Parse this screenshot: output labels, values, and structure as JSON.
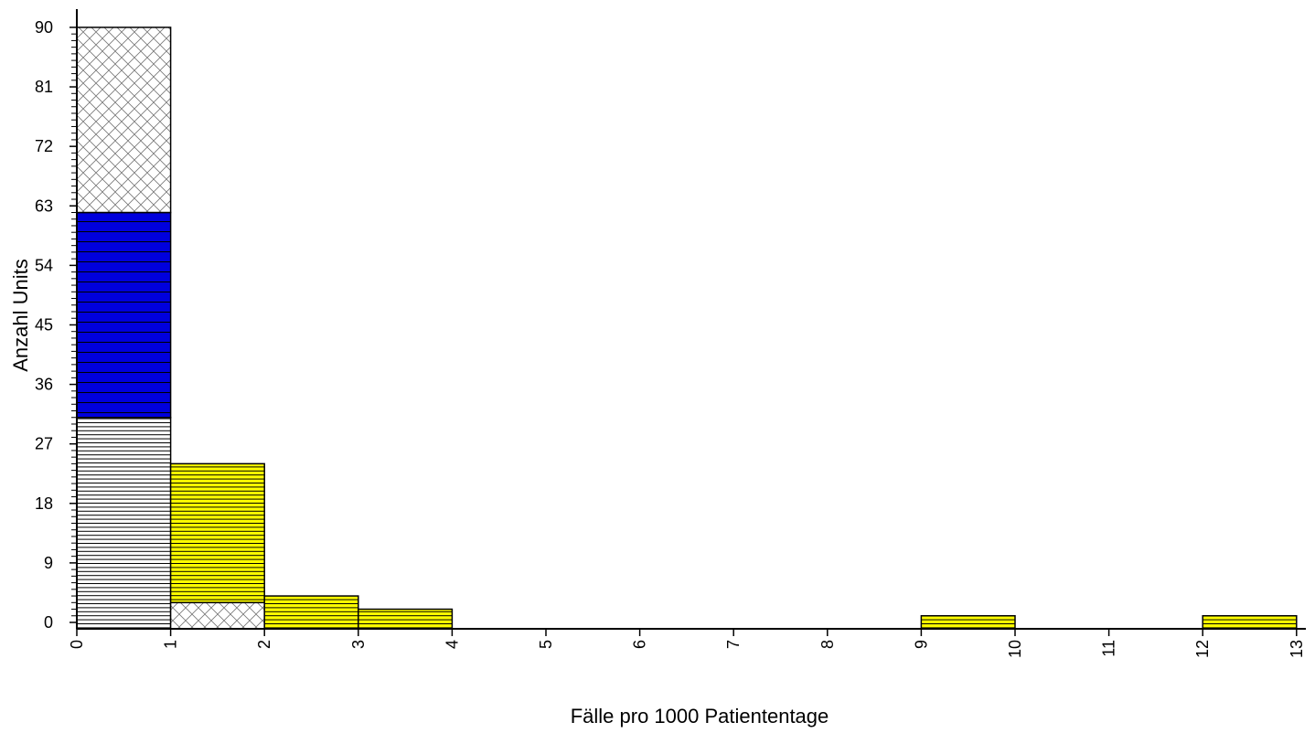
{
  "chart_data": {
    "type": "bar",
    "xlabel": "Fälle pro 1000 Patiententage",
    "ylabel": "Anzahl Units",
    "xlim": [
      0,
      13
    ],
    "ylim": [
      0,
      90
    ],
    "x_ticks": [
      "0",
      "1",
      "2",
      "3",
      "4",
      "5",
      "6",
      "7",
      "8",
      "9",
      "10",
      "11",
      "12",
      "13"
    ],
    "y_ticks": [
      "0",
      "9",
      "18",
      "27",
      "36",
      "45",
      "54",
      "63",
      "72",
      "81",
      "90"
    ],
    "bins": [
      {
        "x0": 0,
        "x1": 1,
        "segments": [
          {
            "y0": 0,
            "y1": 31,
            "fill": "white",
            "pattern": "hlines"
          },
          {
            "y0": 31,
            "y1": 62,
            "fill": "blue",
            "pattern": "hlines-sparse"
          },
          {
            "y0": 62,
            "y1": 90,
            "fill": "white",
            "pattern": "crosshatch"
          }
        ]
      },
      {
        "x0": 1,
        "x1": 2,
        "segments": [
          {
            "y0": 0,
            "y1": 3,
            "fill": "white",
            "pattern": "crosshatch"
          },
          {
            "y0": 3,
            "y1": 24,
            "fill": "yellow",
            "pattern": "hlines"
          }
        ]
      },
      {
        "x0": 2,
        "x1": 3,
        "segments": [
          {
            "y0": 0,
            "y1": 4,
            "fill": "yellow",
            "pattern": "hlines"
          }
        ]
      },
      {
        "x0": 3,
        "x1": 4,
        "segments": [
          {
            "y0": 0,
            "y1": 2,
            "fill": "yellow",
            "pattern": "hlines"
          }
        ]
      },
      {
        "x0": 9,
        "x1": 10,
        "segments": [
          {
            "y0": 0,
            "y1": 1,
            "fill": "yellow",
            "pattern": "hlines"
          }
        ]
      },
      {
        "x0": 12,
        "x1": 13,
        "segments": [
          {
            "y0": 0,
            "y1": 1,
            "fill": "yellow",
            "pattern": "hlines"
          }
        ]
      }
    ],
    "colors": {
      "blue": "#0000dd",
      "yellow": "#ffff00",
      "white": "#ffffff"
    }
  }
}
